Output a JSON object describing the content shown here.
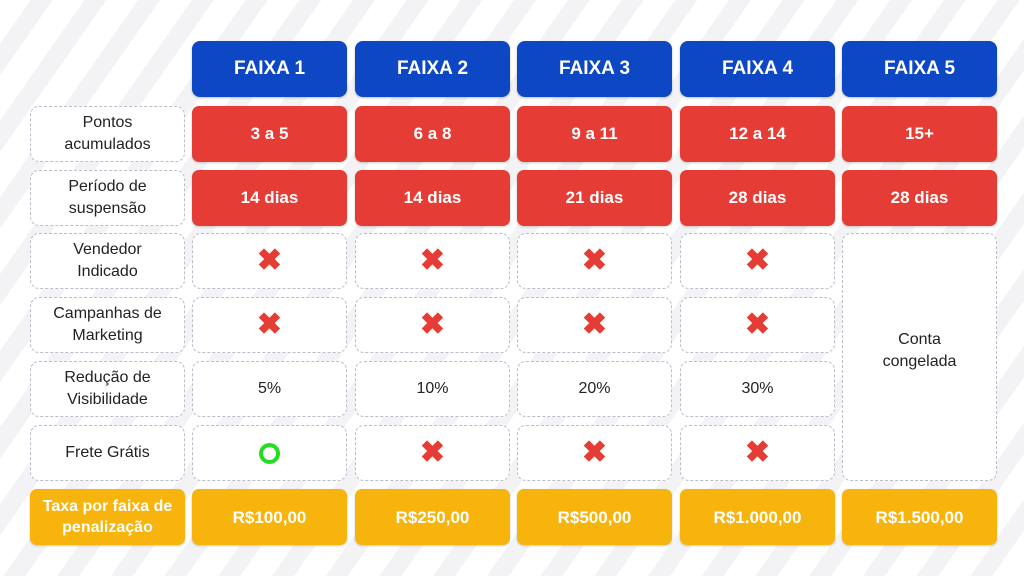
{
  "headers": [
    "FAIXA 1",
    "FAIXA 2",
    "FAIXA 3",
    "FAIXA 4",
    "FAIXA 5"
  ],
  "row_labels": {
    "pontos": "Pontos\nacumulados",
    "periodo": "Período de\nsuspensão",
    "vendedor": "Vendedor\nIndicado",
    "campanhas": "Campanhas de\nMarketing",
    "reducao": "Redução de\nVisibilidade",
    "frete": "Frete Grátis",
    "taxa": "Taxa por faixa de\npenalização"
  },
  "pontos": [
    "3 a 5",
    "6 a 8",
    "9 a 11",
    "12 a 14",
    "15+"
  ],
  "periodo": [
    "14 dias",
    "14 dias",
    "21 dias",
    "28 dias",
    "28 dias"
  ],
  "reducao": [
    "5%",
    "10%",
    "20%",
    "30%"
  ],
  "taxa": [
    "R$100,00",
    "R$250,00",
    "R$500,00",
    "R$1.000,00",
    "R$1.500,00"
  ],
  "conta_congelada": "Conta\ncongelada",
  "marks": {
    "not_included": "✖",
    "vendedor": [
      "not-included",
      "not-included",
      "not-included",
      "not-included"
    ],
    "campanhas": [
      "not-included",
      "not-included",
      "not-included",
      "not-included"
    ],
    "frete": [
      "included",
      "not-included",
      "not-included",
      "not-included"
    ]
  },
  "colors": {
    "header_blue": "#0d47c4",
    "red": "#e53d35",
    "yellow": "#f7b40c",
    "included_green": "#22dd22"
  }
}
